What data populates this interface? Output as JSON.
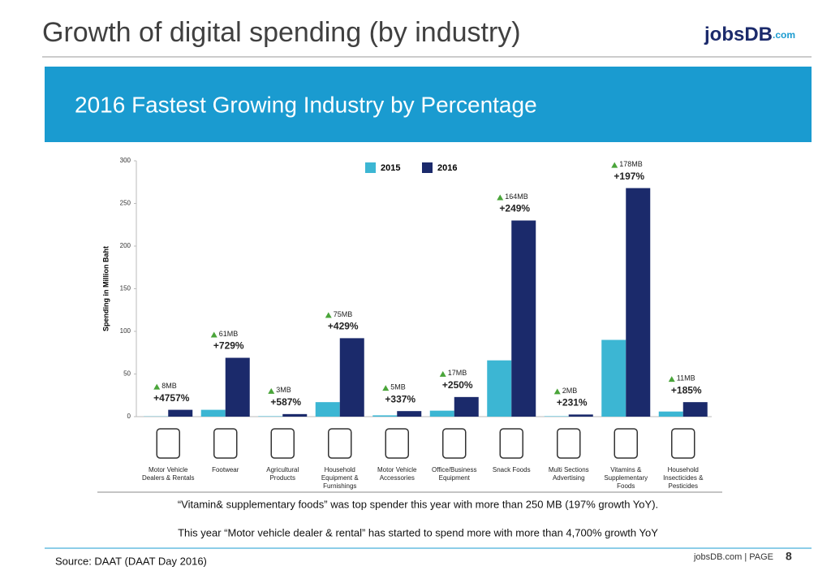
{
  "header": {
    "title": "Growth of digital spending (by industry)",
    "logo": {
      "name": "jobsDB",
      "suffix": ".com"
    }
  },
  "banner": "2016 Fastest Growing Industry by Percentage",
  "chart_data": {
    "type": "bar",
    "y_label": "Spending in Million Baht",
    "categories": [
      "Motor Vehicle Dealers & Rentals",
      "Footwear",
      "Agricultural Products",
      "Household Equipment & Furnishings",
      "Motor Vehicle Accessories",
      "Office/Business Equipment",
      "Snack Foods",
      "Multi Sections Advertising",
      "Vitamins & Supplementary Foods",
      "Household Insecticides & Pesticides"
    ],
    "series": [
      {
        "name": "2015",
        "color": "#3cb6d3",
        "values": [
          0.3,
          8,
          0.5,
          17,
          1.5,
          7,
          66,
          0.5,
          90,
          6
        ]
      },
      {
        "name": "2016",
        "color": "#1b2a6b",
        "values": [
          8,
          69,
          3,
          92,
          6.5,
          23,
          230,
          2.5,
          268,
          17
        ]
      }
    ],
    "annotations": [
      {
        "amount": "8MB",
        "growth": "+4757%"
      },
      {
        "amount": "61MB",
        "growth": "+729%"
      },
      {
        "amount": "3MB",
        "growth": "+587%"
      },
      {
        "amount": "75MB",
        "growth": "+429%"
      },
      {
        "amount": "5MB",
        "growth": "+337%"
      },
      {
        "amount": "17MB",
        "growth": "+250%"
      },
      {
        "amount": "164MB",
        "growth": "+249%"
      },
      {
        "amount": "2MB",
        "growth": "+231%"
      },
      {
        "amount": "178MB",
        "growth": "+197%"
      },
      {
        "amount": "11MB",
        "growth": "+185%"
      }
    ],
    "ylim": [
      0,
      300
    ],
    "yticks": [
      0,
      50,
      100,
      150,
      200,
      250,
      300
    ],
    "grid": false
  },
  "notes": [
    "“Vitamin&  supplementary  foods”  was top spender this year with more than 250 MB (197% growth YoY).",
    "This year “Motor  vehicle dealer & rental”  has started to spend more with more than 4,700% growth  YoY"
  ],
  "source": "Source:  DAAT  (DAAT Day 2016)",
  "footer": {
    "text": "jobsDB.com | PAGE",
    "page": 8
  }
}
